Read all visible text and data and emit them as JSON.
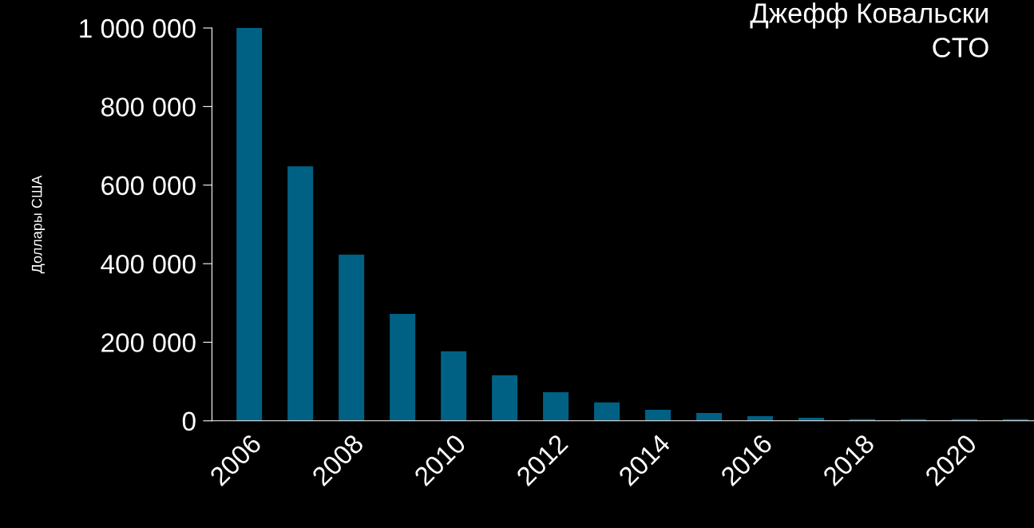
{
  "chart_data": {
    "type": "bar",
    "ylabel": "Доллары США",
    "annotations": [
      "Джефф Ковальски",
      "CTO"
    ],
    "categories": [
      "2006",
      null,
      "2008",
      null,
      "2010",
      null,
      "2012",
      null,
      "2014",
      null,
      "2016",
      null,
      "2018",
      null,
      "2020",
      null
    ],
    "series": [
      {
        "color": "#006185",
        "values": [
          1000000,
          648000,
          423000,
          272000,
          177000,
          116000,
          73000,
          47000,
          28000,
          20000,
          12000,
          8000,
          4000,
          4000,
          4000,
          4000
        ]
      }
    ],
    "ylim": [
      0,
      1000000
    ],
    "yticks": [
      {
        "value": 0,
        "label": "0"
      },
      {
        "value": 200000,
        "label": "200 000"
      },
      {
        "value": 400000,
        "label": "400 000"
      },
      {
        "value": 600000,
        "label": "600 000"
      },
      {
        "value": 800000,
        "label": "800 000"
      },
      {
        "value": 1000000,
        "label": "1 000 000"
      }
    ],
    "grid": false
  }
}
